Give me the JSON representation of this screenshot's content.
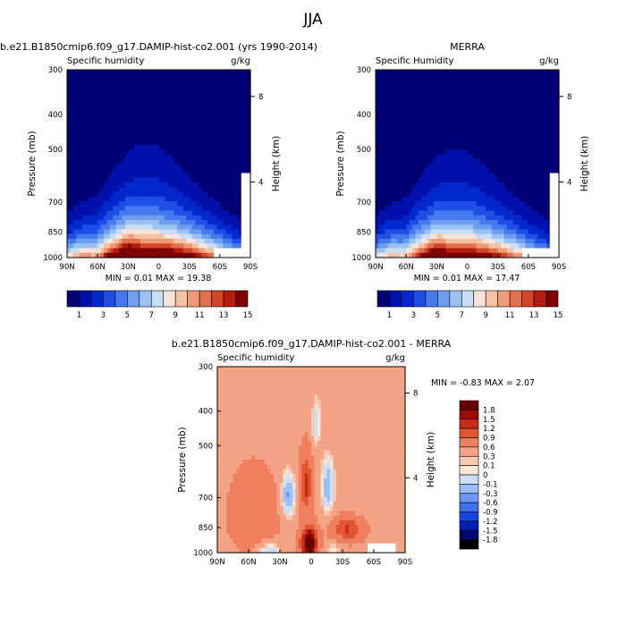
{
  "figure_title": "JJA",
  "colors": {
    "absolute_levels": [
      "#000075",
      "#0010aa",
      "#0028cc",
      "#1e4ee6",
      "#4678ee",
      "#6e9ef0",
      "#9cc2f2",
      "#c8def6",
      "#f8e4da",
      "#f5c2a6",
      "#f09a78",
      "#e3704c",
      "#d24626",
      "#b41c0e",
      "#800000"
    ],
    "difference_levels": [
      "#000a6e",
      "#0020b4",
      "#1a44e0",
      "#4070ee",
      "#6c98f2",
      "#9ebff5",
      "#cddff8",
      "#fde6d6",
      "#f8c8b0",
      "#f4a486",
      "#ef7f5e",
      "#e25532",
      "#c82a14",
      "#9a0c00",
      "#6a0000"
    ],
    "missing": "#ffffff"
  },
  "chart_data": [
    {
      "type": "heatmap",
      "title": "b.e21.B1850cmip6.f09_g17.DAMIP-hist-co2.001 (yrs 1990-2014)",
      "left_label": "Specific humidity",
      "right_label": "g/kg",
      "ylabel": "Pressure (mb)",
      "y2label": "Height (km)",
      "xticks": [
        "90N",
        "60N",
        "30N",
        "0",
        "30S",
        "60S",
        "90S"
      ],
      "xtick_values": [
        90,
        60,
        30,
        0,
        -30,
        -60,
        -90
      ],
      "yticks": [
        "300",
        "400",
        "500",
        "700",
        "850",
        "1000"
      ],
      "ytick_values": [
        300,
        400,
        500,
        700,
        850,
        1000
      ],
      "y2ticks": [
        "8",
        "4"
      ],
      "ylim": [
        1000,
        300
      ],
      "y_scale": "log",
      "stats": "MIN =  0.01  MAX = 19.38",
      "min": 0.01,
      "max": 19.38,
      "colorbar_labels": [
        "1",
        "3",
        "5",
        "7",
        "9",
        "11",
        "13",
        "15"
      ],
      "levels": [
        1,
        2,
        3,
        4,
        5,
        6,
        7,
        8,
        9,
        10,
        11,
        12,
        13,
        14,
        15
      ],
      "peak_latitude": 10,
      "peak_value": 19.38
    },
    {
      "type": "heatmap",
      "title": "MERRA",
      "left_label": "Specific Humidity",
      "right_label": "g/kg",
      "ylabel": "Pressure (mb)",
      "y2label": "Height (km)",
      "xticks": [
        "90N",
        "60N",
        "30N",
        "0",
        "30S",
        "60S",
        "90S"
      ],
      "xtick_values": [
        90,
        60,
        30,
        0,
        -30,
        -60,
        -90
      ],
      "yticks": [
        "300",
        "400",
        "500",
        "700",
        "850",
        "1000"
      ],
      "ytick_values": [
        300,
        400,
        500,
        700,
        850,
        1000
      ],
      "y2ticks": [
        "8",
        "4"
      ],
      "ylim": [
        1000,
        300
      ],
      "y_scale": "log",
      "stats": "MIN =  0.01  MAX = 17.47",
      "min": 0.01,
      "max": 17.47,
      "colorbar_labels": [
        "1",
        "3",
        "5",
        "7",
        "9",
        "11",
        "13",
        "15"
      ],
      "levels": [
        1,
        2,
        3,
        4,
        5,
        6,
        7,
        8,
        9,
        10,
        11,
        12,
        13,
        14,
        15
      ],
      "peak_latitude": 10,
      "peak_value": 17.47
    },
    {
      "type": "heatmap",
      "title": "b.e21.B1850cmip6.f09_g17.DAMIP-hist-co2.001 - MERRA",
      "left_label": "Specific humidity",
      "right_label": "g/kg",
      "ylabel": "Pressure (mb)",
      "y2label": "Height (km)",
      "xticks": [
        "90N",
        "60N",
        "30N",
        "0",
        "30S",
        "60S",
        "90S"
      ],
      "xtick_values": [
        90,
        60,
        30,
        0,
        -30,
        -60,
        -90
      ],
      "yticks": [
        "300",
        "400",
        "500",
        "700",
        "850",
        "1000"
      ],
      "ytick_values": [
        300,
        400,
        500,
        700,
        850,
        1000
      ],
      "y2ticks": [
        "8",
        "4"
      ],
      "ylim": [
        1000,
        300
      ],
      "y_scale": "log",
      "stats": "MIN = -0.83  MAX =  2.07",
      "min": -0.83,
      "max": 2.07,
      "colorbar_labels": [
        "1.8",
        "1.5",
        "1.2",
        "0.9",
        "0.6",
        "0.3",
        "0.1",
        "0",
        "-0.1",
        "-0.3",
        "-0.6",
        "-0.9",
        "-1.2",
        "-1.5",
        "-1.8"
      ],
      "levels": [
        -1.8,
        -1.5,
        -1.2,
        -0.9,
        -0.6,
        -0.3,
        -0.1,
        0,
        0.1,
        0.3,
        0.6,
        0.9,
        1.2,
        1.5,
        1.8
      ]
    }
  ]
}
